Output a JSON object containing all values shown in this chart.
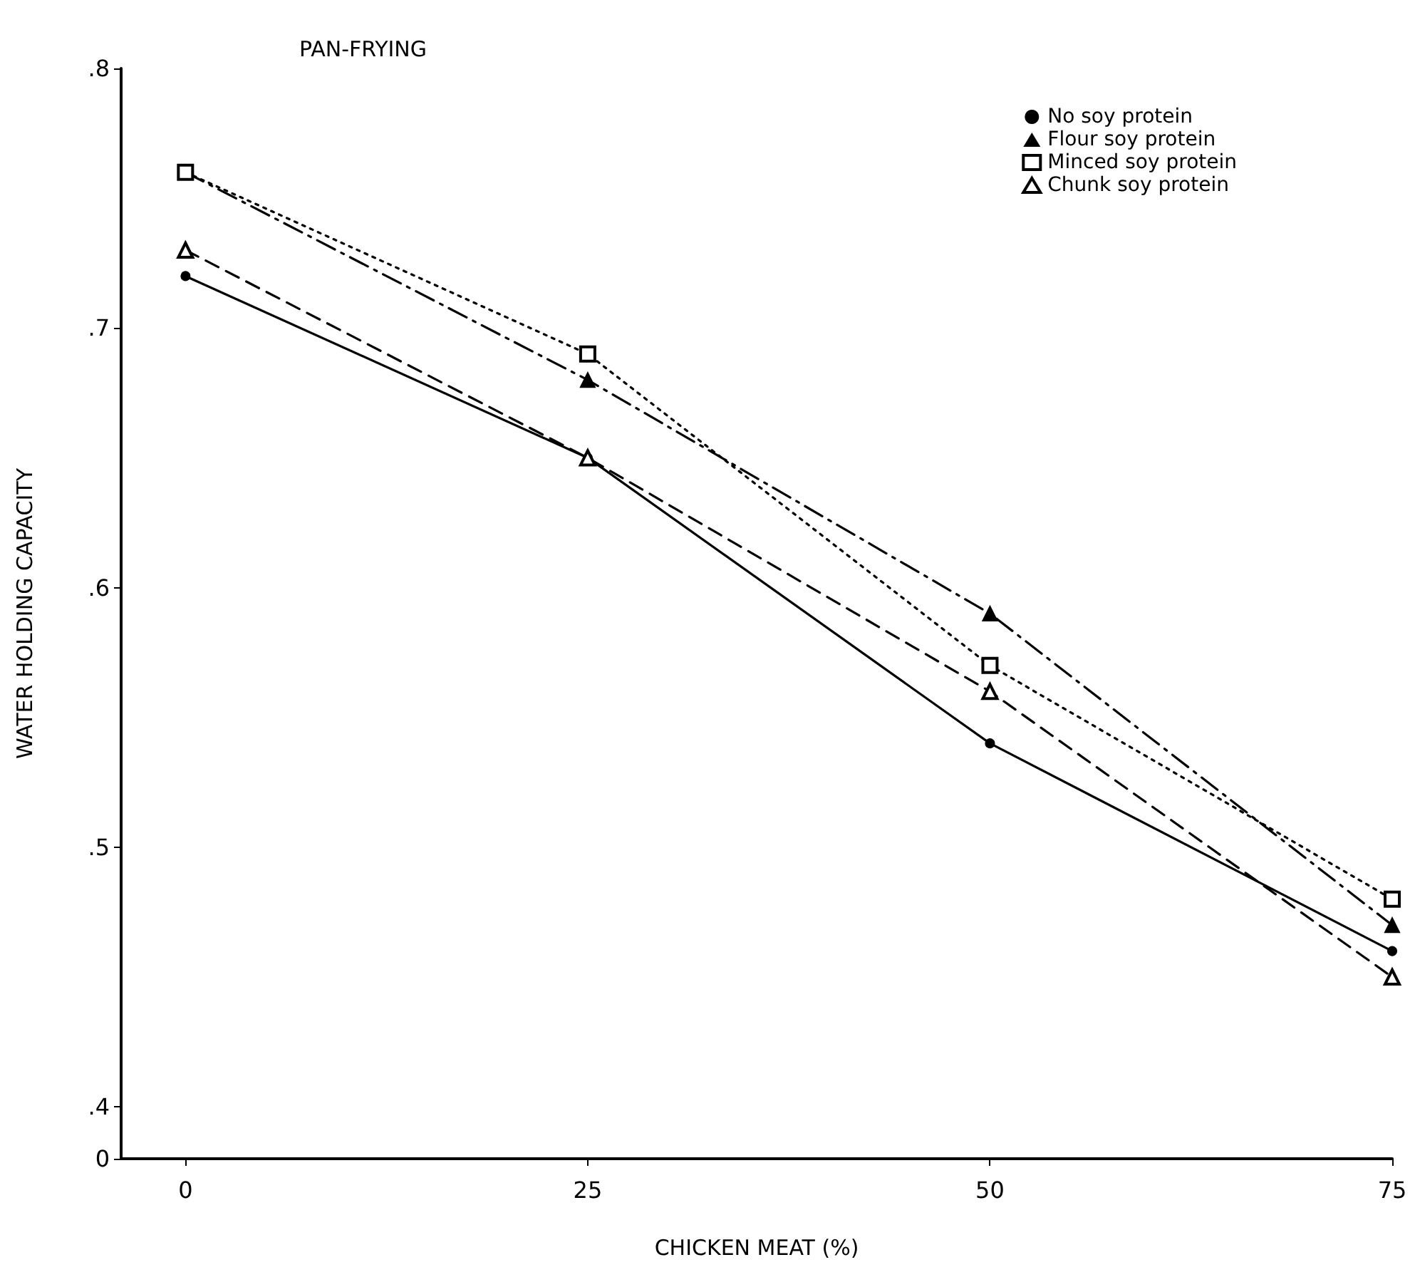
{
  "chart_data": {
    "type": "line",
    "title": "PAN-FRYING",
    "xlabel": "CHICKEN MEAT (%)",
    "ylabel": "WATER HOLDING CAPACITY",
    "x": [
      0,
      25,
      50,
      75
    ],
    "series": [
      {
        "name": "No soy protein",
        "color": "#000000",
        "values": [
          0.72,
          0.65,
          0.54,
          0.46
        ],
        "marker": "circle",
        "line_style": "solid"
      },
      {
        "name": "Flour soy protein",
        "color": "#000000",
        "values": [
          0.76,
          0.68,
          0.59,
          0.47
        ],
        "marker": "triangle",
        "line_style": "dashdot"
      },
      {
        "name": "Minced soy protein",
        "color": "#000000",
        "values": [
          0.76,
          0.69,
          0.57,
          0.48
        ],
        "marker": "square",
        "line_style": "dotted"
      },
      {
        "name": "Chunk soy protein",
        "color": "#000000",
        "values": [
          0.73,
          0.65,
          0.56,
          0.45
        ],
        "marker": "triangle",
        "line_style": "dashed"
      }
    ],
    "xlim": [
      -4,
      75
    ],
    "xticks": [
      0,
      25,
      50,
      75
    ],
    "ylim": [
      0.38,
      0.8
    ],
    "yticks": [
      {
        "value": 0.38,
        "label": "0"
      },
      {
        "value": 0.4,
        "label": ".4"
      },
      {
        "value": 0.5,
        "label": ".5"
      },
      {
        "value": 0.6,
        "label": ".6"
      },
      {
        "value": 0.7,
        "label": ".7"
      },
      {
        "value": 0.8,
        "label": ".8"
      }
    ],
    "grid": false,
    "legend": "top right"
  }
}
